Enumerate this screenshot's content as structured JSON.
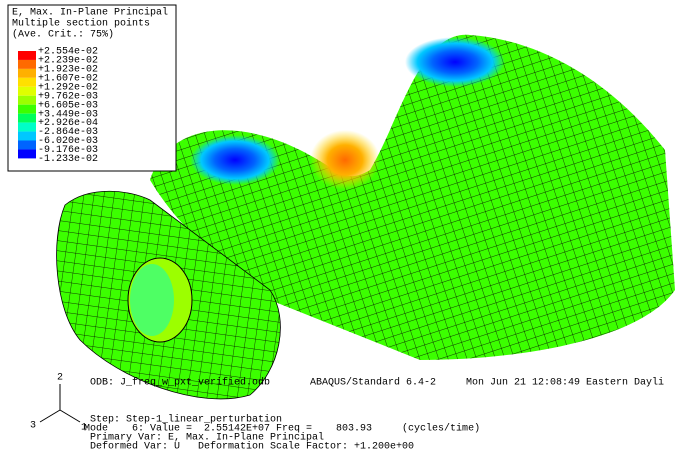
{
  "legend": {
    "title_lines": [
      "E, Max. In-Plane Principal",
      "Multiple section points",
      "(Ave. Crit.: 75%)"
    ],
    "levels": [
      "+2.554e-02",
      "+2.239e-02",
      "+1.923e-02",
      "+1.607e-02",
      "+1.292e-02",
      "+9.762e-03",
      "+6.605e-03",
      "+3.449e-03",
      "+2.926e-04",
      "-2.864e-03",
      "-6.020e-03",
      "-9.176e-03",
      "-1.233e-02"
    ],
    "colors": [
      "#ff0000",
      "#ff6a00",
      "#ffb000",
      "#ffe000",
      "#e0ff00",
      "#9cff00",
      "#3cff00",
      "#00ff5a",
      "#00ffc8",
      "#00c8ff",
      "#0064ff",
      "#0000ff"
    ]
  },
  "info": {
    "odb": "ODB: J_freq_w_pxt_verified.odb",
    "solver": "ABAQUS/Standard 6.4-2",
    "date": "Mon Jun 21 12:08:49 Eastern Dayli",
    "step": "Step: Step-1_linear_perturbation",
    "mode": "Mode    6: Value =  2.55142E+07 Freq =    803.93     (cycles/time)",
    "primary": "Primary Var: E, Max. In-Plane Principal",
    "deformed": "Deformed Var: U   Deformation Scale Factor: +1.200e+00"
  },
  "triad": {
    "x": "1",
    "y": "2",
    "z": "3"
  }
}
